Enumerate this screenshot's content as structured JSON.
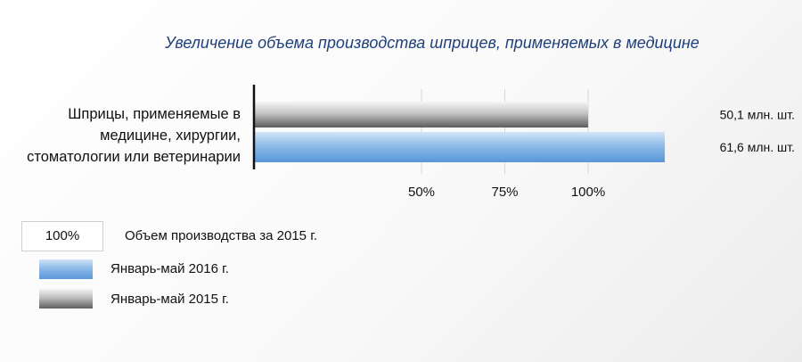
{
  "chart_data": {
    "type": "bar",
    "orientation": "horizontal",
    "title": "Увеличение объема производства шприцев, применяемых в медицине",
    "categories": [
      "Шприцы, применяемые в медицине, хирургии, стоматологии или ветеринарии"
    ],
    "category_lines": [
      "Шприцы, применяемые в",
      "медицине, хирургии,",
      "стоматологии или ветеринарии"
    ],
    "series": [
      {
        "name": "Январь-май 2015 г.",
        "values": [
          50.1
        ],
        "percent": [
          100
        ],
        "label": "50,1 млн. шт.",
        "color": "#9a9a9a"
      },
      {
        "name": "Январь-май 2016 г.",
        "values": [
          61.6
        ],
        "percent": [
          123
        ],
        "label": "61,6 млн. шт.",
        "color": "#6aa3de"
      }
    ],
    "x_ticks": [
      "50%",
      "75%",
      "100%"
    ],
    "x_tick_values": [
      50,
      75,
      100
    ],
    "xlim": [
      0,
      130
    ],
    "legend": {
      "position": "bottom-left",
      "entries": [
        {
          "key": "100%",
          "label": "Объем производства за 2015 г."
        },
        {
          "label": "Январь-май 2016 г.",
          "swatch": "blue"
        },
        {
          "label": "Январь-май 2015 г.",
          "swatch": "gray"
        }
      ]
    },
    "grid": true
  }
}
